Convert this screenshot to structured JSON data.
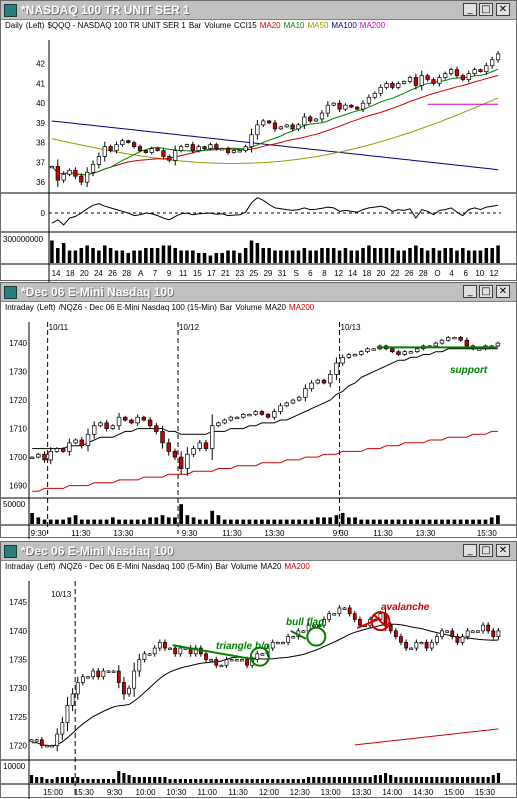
{
  "windows": [
    {
      "title": "*NASDAQ 100 TR UNIT SER 1",
      "legend": [
        {
          "text": "Daily",
          "color": "#000000"
        },
        {
          "text": "(Left)",
          "color": "#000000"
        },
        {
          "text": "$QQQ - NASDAQ 100 TR UNIT SER 1",
          "color": "#000000"
        },
        {
          "text": "Bar",
          "color": "#000000"
        },
        {
          "text": "Volume",
          "color": "#000000"
        },
        {
          "text": "CCI15",
          "color": "#000000"
        },
        {
          "text": "MA20",
          "color": "#cc0000"
        },
        {
          "text": "MA10",
          "color": "#008000"
        },
        {
          "text": "MA50",
          "color": "#999900"
        },
        {
          "text": "MA100",
          "color": "#000080"
        },
        {
          "text": "MA200",
          "color": "#cc00cc"
        }
      ],
      "volume_scale_label": "300000000"
    },
    {
      "title": "*Dec 06  E-Mini Nasdaq 100",
      "legend": [
        {
          "text": "Intraday",
          "color": "#000000"
        },
        {
          "text": "(Left)",
          "color": "#000000"
        },
        {
          "text": "/NQZ6 - Dec 06  E-Mini Nasdaq 100 (15-Min)",
          "color": "#000000"
        },
        {
          "text": "Bar",
          "color": "#000000"
        },
        {
          "text": "Volume",
          "color": "#000000"
        },
        {
          "text": "MA20",
          "color": "#000000"
        },
        {
          "text": "MA200",
          "color": "#cc0000"
        }
      ],
      "volume_scale_label": "50000",
      "annotation_support": "support"
    },
    {
      "title": "*Dec 06  E-Mini Nasdaq 100",
      "legend": [
        {
          "text": "Intraday",
          "color": "#000000"
        },
        {
          "text": "(Left)",
          "color": "#000000"
        },
        {
          "text": "/NQZ6 - Dec 06  E-Mini Nasdaq 100 (5-Min)",
          "color": "#000000"
        },
        {
          "text": "Bar",
          "color": "#000000"
        },
        {
          "text": "Volume",
          "color": "#000000"
        },
        {
          "text": "MA20",
          "color": "#000000"
        },
        {
          "text": "MA200",
          "color": "#cc0000"
        }
      ],
      "volume_scale_label": "10000",
      "annotation_triangle": "triangle b/o",
      "annotation_bullflag": "bull flag",
      "annotation_avalanche": "avalanche"
    }
  ],
  "colors": {
    "up_body": "#ffffff",
    "down_body": "#cc0000",
    "ma20_daily": "#cc0000",
    "ma10_daily": "#008000",
    "ma50_daily": "#999900",
    "ma100_daily": "#000080",
    "ma200_daily": "#cc00cc",
    "intraday_ma20": "#000000",
    "intraday_ma200": "#cc0000",
    "annotation_green": "#008000",
    "annotation_red": "#cc0000"
  },
  "chart_data": [
    {
      "type": "candlestick",
      "title": "*NASDAQ 100 TR UNIT SER 1",
      "ylim": [
        35.5,
        43
      ],
      "yticks": [
        36,
        37,
        38,
        39,
        40,
        41,
        42
      ],
      "xticklabels": [
        "14",
        "18",
        "20",
        "24",
        "26",
        "28",
        "A",
        "7",
        "9",
        "11",
        "15",
        "17",
        "21",
        "23",
        "25",
        "29",
        "31",
        "S",
        "6",
        "8",
        "12",
        "14",
        "18",
        "20",
        "22",
        "26",
        "28",
        "O",
        "4",
        "6",
        "10",
        "12"
      ],
      "close": [
        36.8,
        36.1,
        36.4,
        36.6,
        36.3,
        36.0,
        36.5,
        36.9,
        37.3,
        37.8,
        37.6,
        37.9,
        38.1,
        38.0,
        37.8,
        37.6,
        37.5,
        37.7,
        37.6,
        37.3,
        37.1,
        37.6,
        37.8,
        37.9,
        37.6,
        37.8,
        37.7,
        37.9,
        37.7,
        37.7,
        37.5,
        37.6,
        37.6,
        37.8,
        38.4,
        38.9,
        39.1,
        39.0,
        38.7,
        38.8,
        38.9,
        38.7,
        38.9,
        39.3,
        39.1,
        39.2,
        39.5,
        39.9,
        40.0,
        39.7,
        39.9,
        39.8,
        39.7,
        40.0,
        40.3,
        40.5,
        40.8,
        41.0,
        40.8,
        41.0,
        41.1,
        41.3,
        40.9,
        41.4,
        41.2,
        41.0,
        41.3,
        41.5,
        41.7,
        41.4,
        41.2,
        41.5,
        41.7,
        41.6,
        41.9,
        42.2,
        42.5
      ],
      "cci15": [
        -120,
        -80,
        -140,
        -60,
        -40,
        0,
        50,
        90,
        110,
        80,
        60,
        40,
        20,
        0,
        -30,
        -20,
        0,
        -10,
        -30,
        -60,
        -80,
        -40,
        -10,
        0,
        -20,
        -10,
        -5,
        0,
        -15,
        -10,
        -30,
        -25,
        -20,
        10,
        120,
        180,
        150,
        100,
        60,
        50,
        40,
        30,
        40,
        60,
        40,
        45,
        55,
        70,
        60,
        20,
        30,
        20,
        10,
        40,
        60,
        70,
        80,
        60,
        20,
        40,
        30,
        50,
        -60,
        40,
        20,
        -20,
        30,
        40,
        60,
        10,
        -30,
        40,
        60,
        40,
        70,
        80,
        90
      ],
      "volume_relative": [
        0.9,
        0.6,
        0.8,
        0.5,
        0.5,
        0.6,
        0.7,
        0.6,
        0.5,
        0.7,
        0.6,
        0.5,
        0.5,
        0.4,
        0.5,
        0.5,
        0.6,
        0.6,
        0.6,
        0.7,
        0.7,
        0.6,
        0.5,
        0.5,
        0.5,
        0.4,
        0.4,
        0.3,
        0.4,
        0.4,
        0.5,
        0.5,
        0.4,
        0.6,
        0.9,
        0.8,
        0.6,
        0.6,
        0.5,
        0.5,
        0.5,
        0.5,
        0.5,
        0.6,
        0.5,
        0.5,
        0.6,
        0.6,
        0.6,
        0.5,
        0.6,
        0.5,
        0.5,
        0.6,
        0.7,
        0.6,
        0.6,
        0.6,
        0.6,
        0.5,
        0.5,
        0.6,
        0.7,
        0.6,
        0.5,
        0.6,
        0.5,
        0.6,
        0.6,
        0.5,
        0.6,
        0.5,
        0.5,
        0.5,
        0.6,
        0.6,
        0.7
      ]
    },
    {
      "type": "candlestick",
      "title": "*Dec 06  E-Mini Nasdaq 100 (15-Min)",
      "ylim": [
        1686,
        1746
      ],
      "yticks": [
        1690,
        1700,
        1710,
        1720,
        1730,
        1740
      ],
      "date_labels": [
        "10/11",
        "10/12",
        "10/13"
      ],
      "xticklabels": [
        "9:30",
        "11:30",
        "13:30",
        "9:30",
        "11:30",
        "13:30",
        "9:30",
        "11:30",
        "13:30",
        "15:30"
      ],
      "close": [
        1700,
        1701,
        1699,
        1702,
        1703,
        1702,
        1705,
        1706,
        1704,
        1708,
        1711,
        1712,
        1710,
        1711,
        1714,
        1713,
        1712,
        1714,
        1713,
        1711,
        1709,
        1705,
        1702,
        1700,
        1696,
        1701,
        1703,
        1705,
        1703,
        1711,
        1712,
        1713,
        1714,
        1714,
        1715,
        1715,
        1716,
        1715,
        1714,
        1716,
        1718,
        1719,
        1720,
        1721,
        1724,
        1726,
        1727,
        1726,
        1729,
        1733,
        1735,
        1736,
        1736,
        1737,
        1738,
        1738,
        1739,
        1738,
        1737,
        1736,
        1737,
        1737,
        1738,
        1739,
        1739,
        1740,
        1741,
        1742,
        1742,
        1741,
        1739,
        1738,
        1738,
        1739,
        1739,
        1740
      ],
      "ma20": [
        1703,
        1703,
        1703,
        1703,
        1703,
        1703,
        1704,
        1704,
        1704,
        1705,
        1706,
        1707,
        1707,
        1707,
        1708,
        1709,
        1709,
        1710,
        1710,
        1710,
        1710,
        1710,
        1709,
        1709,
        1708,
        1708,
        1708,
        1708,
        1708,
        1709,
        1709,
        1709,
        1710,
        1710,
        1710,
        1711,
        1711,
        1712,
        1712,
        1712,
        1713,
        1713,
        1714,
        1715,
        1716,
        1717,
        1718,
        1719,
        1720,
        1722,
        1723,
        1725,
        1726,
        1728,
        1729,
        1730,
        1731,
        1732,
        1733,
        1734,
        1734,
        1735,
        1735,
        1736,
        1736,
        1737,
        1737,
        1738,
        1738,
        1738,
        1738,
        1738,
        1738,
        1738,
        1738,
        1738
      ],
      "ma200": [
        1688,
        1688,
        1689,
        1689,
        1689,
        1689,
        1690,
        1690,
        1690,
        1690,
        1691,
        1691,
        1691,
        1691,
        1692,
        1692,
        1692,
        1692,
        1693,
        1693,
        1693,
        1693,
        1694,
        1694,
        1694,
        1694,
        1695,
        1695,
        1695,
        1695,
        1696,
        1696,
        1696,
        1697,
        1697,
        1697,
        1697,
        1698,
        1698,
        1698,
        1698,
        1699,
        1699,
        1699,
        1700,
        1700,
        1700,
        1701,
        1701,
        1701,
        1702,
        1702,
        1702,
        1702,
        1703,
        1703,
        1703,
        1704,
        1704,
        1704,
        1705,
        1705,
        1705,
        1705,
        1706,
        1706,
        1706,
        1707,
        1707,
        1707,
        1707,
        1708,
        1708,
        1708,
        1709,
        1709
      ],
      "volume_relative": [
        0.5,
        0.3,
        0.2,
        0.2,
        0.2,
        0.2,
        0.3,
        0.4,
        0.2,
        0.2,
        0.2,
        0.2,
        0.2,
        0.3,
        0.2,
        0.2,
        0.2,
        0.2,
        0.2,
        0.3,
        0.3,
        0.4,
        0.3,
        0.3,
        0.9,
        0.4,
        0.3,
        0.2,
        0.2,
        0.6,
        0.4,
        0.2,
        0.2,
        0.2,
        0.2,
        0.2,
        0.2,
        0.2,
        0.2,
        0.2,
        0.2,
        0.2,
        0.2,
        0.2,
        0.2,
        0.2,
        0.3,
        0.3,
        0.3,
        0.4,
        0.5,
        0.3,
        0.3,
        0.2,
        0.2,
        0.2,
        0.2,
        0.2,
        0.2,
        0.2,
        0.2,
        0.2,
        0.2,
        0.2,
        0.2,
        0.2,
        0.2,
        0.2,
        0.2,
        0.2,
        0.2,
        0.2,
        0.2,
        0.2,
        0.3,
        0.4
      ]
    },
    {
      "type": "candlestick",
      "title": "*Dec 06  E-Mini Nasdaq 100 (5-Min)",
      "ylim": [
        1718,
        1748
      ],
      "yticks": [
        1720,
        1725,
        1730,
        1735,
        1740,
        1745
      ],
      "date_labels": [
        "10/13"
      ],
      "xticklabels": [
        "15:00",
        "15:30",
        "9:30",
        "10:00",
        "10:30",
        "11:00",
        "11:30",
        "12:00",
        "12:30",
        "13:00",
        "13:30",
        "14:00",
        "14:30",
        "15:00",
        "15:30"
      ],
      "close": [
        1721,
        1721,
        1720,
        1720,
        1720,
        1722,
        1724,
        1727,
        1729,
        1731,
        1732,
        1732,
        1733,
        1732,
        1733,
        1733,
        1733,
        1731,
        1729,
        1730,
        1733,
        1735,
        1736,
        1736,
        1737,
        1738,
        1737,
        1737,
        1736,
        1737,
        1737,
        1736,
        1737,
        1736,
        1735,
        1735,
        1734,
        1734,
        1735,
        1735,
        1735,
        1735,
        1734,
        1735,
        1736,
        1736,
        1737,
        1738,
        1738,
        1738,
        1739,
        1739,
        1740,
        1740,
        1741,
        1741,
        1741,
        1742,
        1743,
        1743,
        1744,
        1744,
        1743,
        1742,
        1741,
        1741,
        1742,
        1742,
        1743,
        1741,
        1740,
        1739,
        1738,
        1737,
        1737,
        1738,
        1738,
        1737,
        1738,
        1739,
        1740,
        1740,
        1739,
        1738,
        1739,
        1740,
        1740,
        1740,
        1741,
        1740,
        1739,
        1740
      ],
      "volume_relative": [
        0.4,
        0.3,
        0.3,
        0.2,
        0.2,
        0.3,
        0.3,
        0.3,
        0.3,
        0.3,
        0.2,
        0.2,
        0.2,
        0.2,
        0.2,
        0.2,
        0.2,
        0.6,
        0.5,
        0.4,
        0.3,
        0.3,
        0.3,
        0.3,
        0.3,
        0.3,
        0.3,
        0.2,
        0.2,
        0.2,
        0.2,
        0.2,
        0.2,
        0.2,
        0.2,
        0.2,
        0.2,
        0.2,
        0.2,
        0.2,
        0.2,
        0.2,
        0.2,
        0.2,
        0.2,
        0.2,
        0.2,
        0.2,
        0.2,
        0.2,
        0.2,
        0.2,
        0.2,
        0.2,
        0.3,
        0.3,
        0.3,
        0.3,
        0.3,
        0.3,
        0.3,
        0.3,
        0.3,
        0.3,
        0.3,
        0.3,
        0.3,
        0.4,
        0.4,
        0.5,
        0.4,
        0.3,
        0.3,
        0.3,
        0.3,
        0.3,
        0.3,
        0.3,
        0.3,
        0.3,
        0.3,
        0.3,
        0.3,
        0.3,
        0.3,
        0.3,
        0.3,
        0.3,
        0.3,
        0.3,
        0.4,
        0.5
      ]
    }
  ]
}
